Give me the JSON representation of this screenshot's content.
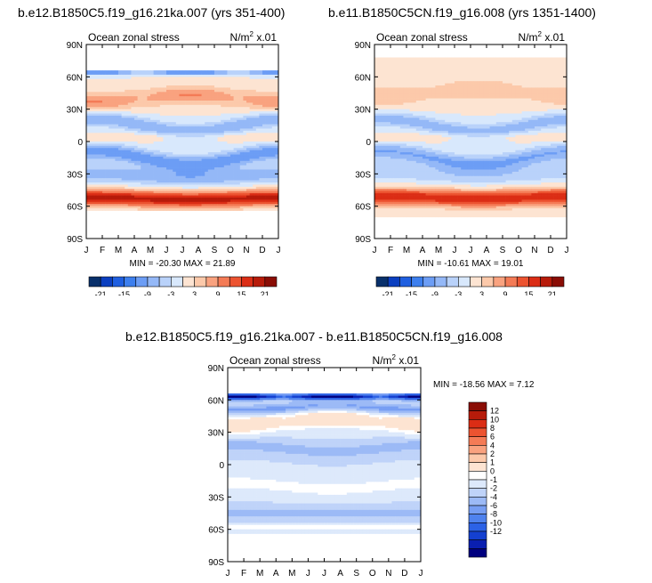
{
  "titles": {
    "left": "b.e12.B1850C5.f19_g16.21ka.007 (yrs 351-400)",
    "right": "b.e11.B1850C5CN.f19_g16.008 (yrs 1351-1400)",
    "diff": "b.e12.B1850C5.f19_g16.21ka.007 - b.e11.B1850C5CN.f19_g16.008"
  },
  "palettes": {
    "main": [
      "#08306b",
      "#0b3fc0",
      "#1f5fe0",
      "#3d7fee",
      "#6c9df5",
      "#94b8f7",
      "#b9d2fa",
      "#d8e8fc",
      "#fde4d2",
      "#fcc9aa",
      "#f9a27f",
      "#f47b56",
      "#ec5330",
      "#db2d15",
      "#b71b0a",
      "#8a0d05"
    ],
    "diff": [
      "#00007f",
      "#0a1fb0",
      "#1440d0",
      "#2c62e6",
      "#4f82ee",
      "#779ef3",
      "#9cbaf6",
      "#bfd3f9",
      "#dde9fb",
      "#ffffff",
      "#fde4d2",
      "#fcc9aa",
      "#f9a27f",
      "#f47b56",
      "#ec5330",
      "#db2d15",
      "#b71b0a",
      "#8a0d05"
    ]
  },
  "chart_data": [
    {
      "type": "heatmap",
      "panel": "left",
      "left_label": "Ocean zonal stress",
      "units_base": "N/m",
      "units_sup": "2",
      "units_scale": " x.01",
      "x_ticks": [
        "J",
        "F",
        "M",
        "A",
        "M",
        "J",
        "J",
        "A",
        "S",
        "O",
        "N",
        "D",
        "J"
      ],
      "y_ticks": [
        "90N",
        "60N",
        "30N",
        "0",
        "30S",
        "60S",
        "90S"
      ],
      "ylim": [
        -90,
        90
      ],
      "stats_text": "MIN = -20.30 MAX =  21.89",
      "min": -20.3,
      "max": 21.89,
      "colorbar": {
        "orientation": "horizontal",
        "tick_labels": [
          "-21",
          "-15",
          "-9",
          "-3",
          "3",
          "9",
          "15",
          "21"
        ],
        "levels": [
          -21,
          -18,
          -15,
          -12,
          -9,
          -6,
          -3,
          0,
          3,
          6,
          9,
          12,
          15,
          18,
          21
        ]
      }
    },
    {
      "type": "heatmap",
      "panel": "right",
      "left_label": "Ocean zonal stress",
      "units_base": "N/m",
      "units_sup": "2",
      "units_scale": " x.01",
      "x_ticks": [
        "J",
        "F",
        "M",
        "A",
        "M",
        "J",
        "J",
        "A",
        "S",
        "O",
        "N",
        "D",
        "J"
      ],
      "y_ticks": [
        "90N",
        "60N",
        "30N",
        "0",
        "30S",
        "60S",
        "90S"
      ],
      "ylim": [
        -90,
        90
      ],
      "stats_text": "MIN = -10.61 MAX =  19.01",
      "min": -10.61,
      "max": 19.01,
      "colorbar": {
        "orientation": "horizontal",
        "tick_labels": [
          "-21",
          "-15",
          "-9",
          "-3",
          "3",
          "9",
          "15",
          "21"
        ],
        "levels": [
          -21,
          -18,
          -15,
          -12,
          -9,
          -6,
          -3,
          0,
          3,
          6,
          9,
          12,
          15,
          18,
          21
        ]
      }
    },
    {
      "type": "heatmap",
      "panel": "diff",
      "left_label": "Ocean zonal stress",
      "units_base": "N/m",
      "units_sup": "2",
      "units_scale": " x.01",
      "x_ticks": [
        "J",
        "F",
        "M",
        "A",
        "M",
        "J",
        "J",
        "A",
        "S",
        "O",
        "N",
        "D",
        "J"
      ],
      "y_ticks": [
        "90N",
        "60N",
        "30N",
        "0",
        "30S",
        "60S",
        "90S"
      ],
      "ylim": [
        -90,
        90
      ],
      "stats_text": "MIN = -18.56 MAX =   7.12",
      "min": -18.56,
      "max": 7.12,
      "colorbar": {
        "orientation": "vertical",
        "tick_labels": [
          "12",
          "10",
          "8",
          "6",
          "4",
          "2",
          "1",
          "0",
          "-1",
          "-2",
          "-4",
          "-6",
          "-8",
          "-10",
          "-12"
        ],
        "levels": [
          12,
          10,
          8,
          6,
          4,
          2,
          1,
          0,
          -1,
          -2,
          -4,
          -6,
          -8,
          -10,
          -12
        ]
      }
    }
  ]
}
